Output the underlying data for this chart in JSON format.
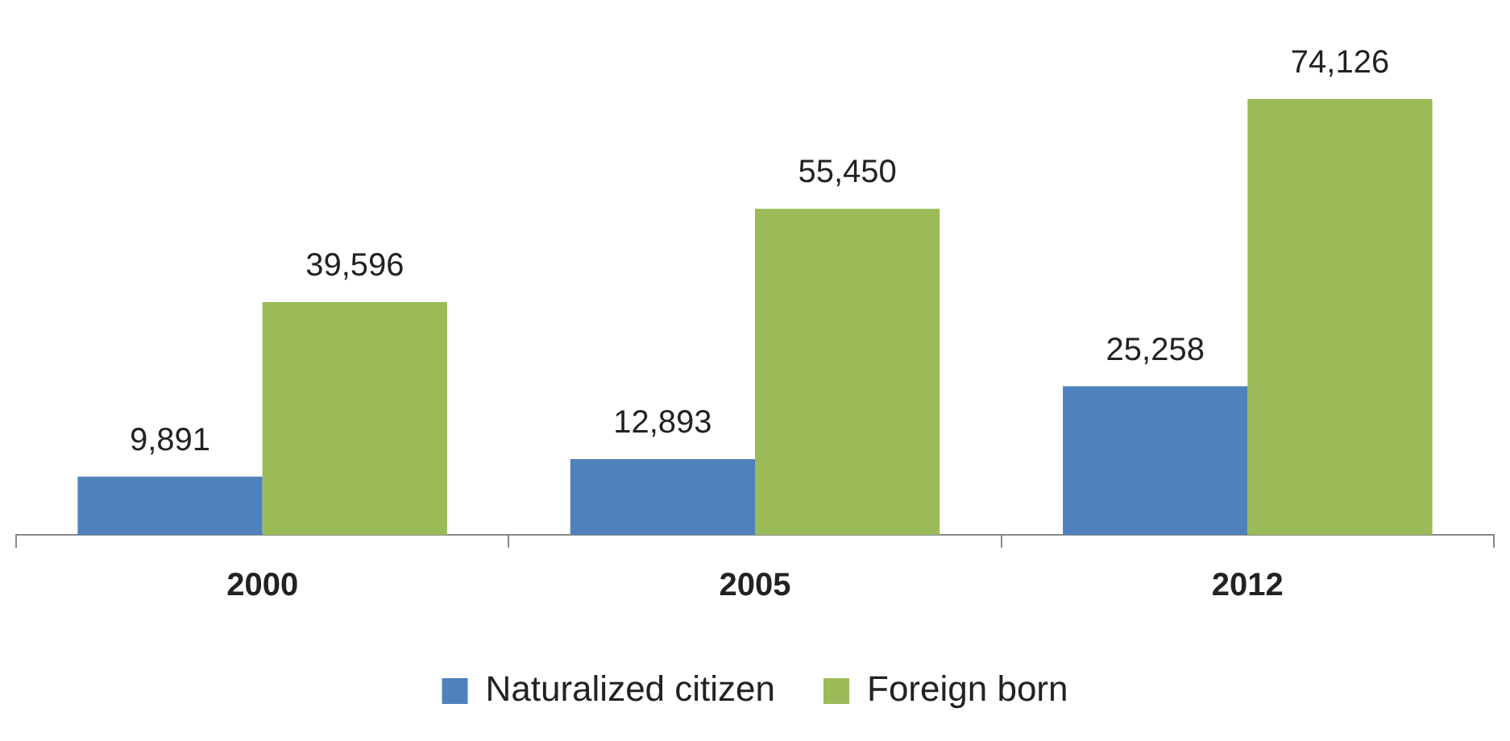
{
  "chart_data": {
    "type": "bar",
    "categories": [
      "2000",
      "2005",
      "2012"
    ],
    "series": [
      {
        "name": "Naturalized citizen",
        "color": "#4f81bd",
        "values": [
          9891,
          12893,
          25258
        ],
        "value_labels": [
          "9,891",
          "12,893",
          "25,258"
        ]
      },
      {
        "name": "Foreign born",
        "color": "#9bbb59",
        "values": [
          39596,
          55450,
          74126
        ],
        "value_labels": [
          "39,596",
          "55,450",
          "74,126"
        ]
      }
    ],
    "legend": "bottom"
  }
}
